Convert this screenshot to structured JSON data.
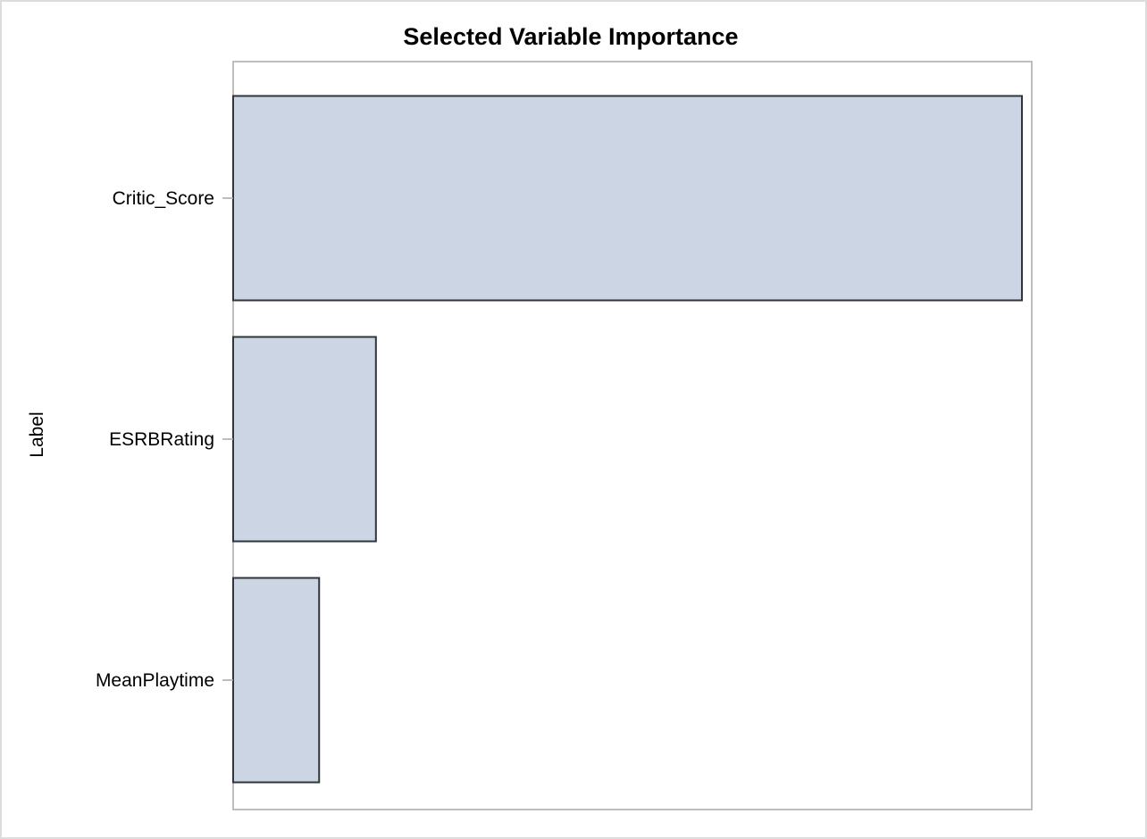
{
  "chart_data": {
    "type": "bar",
    "orientation": "horizontal",
    "title": "Selected Variable Importance",
    "ylabel": "Label",
    "xlabel": "",
    "categories": [
      "Critic_Score",
      "ESRBRating",
      "MeanPlaytime"
    ],
    "values": [
      1.0,
      0.181,
      0.109
    ],
    "xlim": [
      0,
      1.0
    ],
    "x_ticks_shown": false,
    "grid": false,
    "legend": "none",
    "colors": {
      "bar_fill": "#cbd5e3",
      "bar_stroke": "#2f353b",
      "axis": "#a9a9a9",
      "frame": "#dcdcdc"
    }
  }
}
